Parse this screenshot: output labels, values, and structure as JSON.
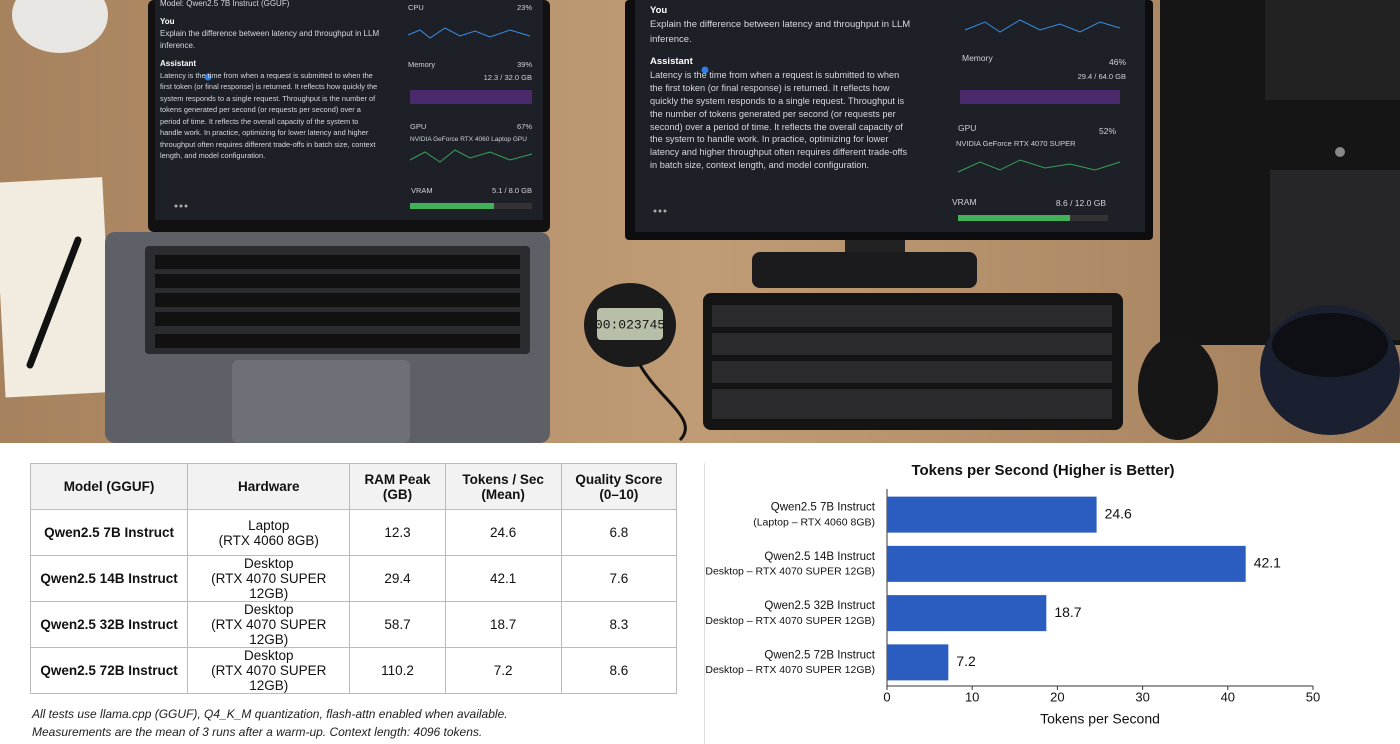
{
  "photo": {
    "laptop": {
      "model": "Model: Qwen2.5 7B Instruct (GGUF)",
      "you": "You",
      "question": "Explain the difference between latency and throughput in LLM inference.",
      "assistant": "Assistant",
      "answer": "Latency is the time from when a request is submitted to when the first token (or final response) is returned. It reflects how quickly the system responds to a single request. Throughput is the number of tokens generated per second (or requests per second) over a period of time. It reflects the overall capacity of the system to handle work. In practice, optimizing for lower latency and higher throughput often requires different trade-offs in batch size, context length, and model configuration.",
      "cpu": "CPU",
      "cpu_pct": "23%",
      "memory": "Memory",
      "memory_pct": "39%",
      "memory_used": "12.3 / 32.0 GB",
      "gpu": "GPU",
      "gpu_pct": "67%",
      "gpu_name": "NVIDIA GeForce RTX 4060 Laptop GPU",
      "vram": "VRAM",
      "vram_used": "5.1 / 8.0 GB"
    },
    "desktop": {
      "you": "You",
      "question": "Explain the difference between latency and throughput in LLM inference.",
      "assistant": "Assistant",
      "answer": "Latency is the time from when a request is submitted to when the first token (or final response) is returned. It reflects how quickly the system responds to a single request. Throughput is the number of tokens generated per second (or requests per second) over a period of time. It reflects the overall capacity of the system to handle work. In practice, optimizing for lower latency and higher throughput often requires different trade-offs in batch size, context length, and model configuration.",
      "memory": "Memory",
      "memory_pct": "46%",
      "memory_used": "29.4 / 64.0 GB",
      "gpu": "GPU",
      "gpu_pct": "52%",
      "gpu_name": "NVIDIA GeForce RTX 4070 SUPER",
      "vram": "VRAM",
      "vram_used": "8.6 / 12.0 GB"
    },
    "stopwatch": "00:023745"
  },
  "table": {
    "header": [
      "Model (GGUF)",
      "Hardware",
      "RAM Peak\n(GB)",
      "Tokens / Sec\n(Mean)",
      "Quality Score\n(0–10)"
    ],
    "rows": [
      [
        "Qwen2.5 7B Instruct",
        "Laptop\n(RTX 4060 8GB)",
        12.3,
        24.6,
        6.8
      ],
      [
        "Qwen2.5 14B Instruct",
        "Desktop\n(RTX 4070 SUPER 12GB)",
        29.4,
        42.1,
        7.6
      ],
      [
        "Qwen2.5 32B Instruct",
        "Desktop\n(RTX 4070 SUPER 12GB)",
        58.7,
        18.7,
        8.3
      ],
      [
        "Qwen2.5 72B Instruct",
        "Desktop\n(RTX 4070 SUPER 12GB)",
        110.2,
        7.2,
        8.6
      ]
    ]
  },
  "notes": [
    "All tests use llama.cpp (GGUF), Q4_K_M quantization, flash-attn enabled when available.",
    "Measurements are the mean of 3 runs after a warm-up. Context length: 4096 tokens."
  ],
  "chart_data": {
    "type": "hbar",
    "title": "Tokens per Second (Higher is Better)",
    "xlabel": "Tokens per Second",
    "categories": [
      [
        "Qwen2.5 7B Instruct",
        "(Laptop – RTX 4060 8GB)"
      ],
      [
        "Qwen2.5 14B Instruct",
        "(Desktop – RTX 4070 SUPER 12GB)"
      ],
      [
        "Qwen2.5 32B Instruct",
        "(Desktop – RTX 4070 SUPER 12GB)"
      ],
      [
        "Qwen2.5 72B Instruct",
        "(Desktop – RTX 4070 SUPER 12GB)"
      ]
    ],
    "values": [
      24.6,
      42.1,
      18.7,
      7.2
    ],
    "color": "#2b5cbf",
    "xlim": [
      0,
      50
    ],
    "xticks": [
      0,
      10,
      20,
      30,
      40,
      50
    ]
  }
}
